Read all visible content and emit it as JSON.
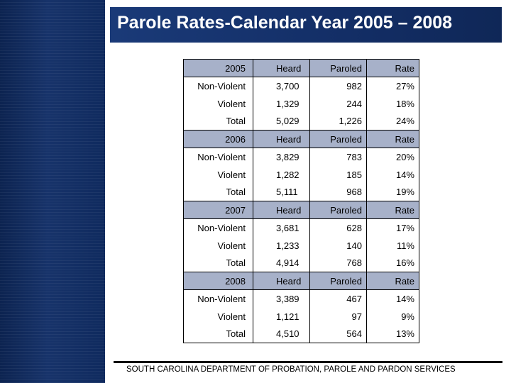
{
  "title": "Parole Rates-Calendar Year 2005 – 2008",
  "footer": "SOUTH CAROLINA DEPARTMENT OF PROBATION, PAROLE AND PARDON SERVICES",
  "colors": {
    "panel": "#17336a",
    "title_bar": "#1a3a78",
    "header_row": "#a7b1c9"
  },
  "table": {
    "sections": [
      {
        "year": "2005",
        "heard": "Heard",
        "paroled": "Paroled",
        "rate": "Rate",
        "rows": [
          {
            "label": "Non-Violent",
            "heard": "3,700",
            "paroled": "982",
            "rate": "27%"
          },
          {
            "label": "Violent",
            "heard": "1,329",
            "paroled": "244",
            "rate": "18%"
          },
          {
            "label": "Total",
            "heard": "5,029",
            "paroled": "1,226",
            "rate": "24%"
          }
        ]
      },
      {
        "year": "2006",
        "heard": "Heard",
        "paroled": "Paroled",
        "rate": "Rate",
        "rows": [
          {
            "label": "Non-Violent",
            "heard": "3,829",
            "paroled": "783",
            "rate": "20%"
          },
          {
            "label": "Violent",
            "heard": "1,282",
            "paroled": "185",
            "rate": "14%"
          },
          {
            "label": "Total",
            "heard": "5,111",
            "paroled": "968",
            "rate": "19%"
          }
        ]
      },
      {
        "year": "2007",
        "heard": "Heard",
        "paroled": "Paroled",
        "rate": "Rate",
        "rows": [
          {
            "label": "Non-Violent",
            "heard": "3,681",
            "paroled": "628",
            "rate": "17%"
          },
          {
            "label": "Violent",
            "heard": "1,233",
            "paroled": "140",
            "rate": "11%"
          },
          {
            "label": "Total",
            "heard": "4,914",
            "paroled": "768",
            "rate": "16%"
          }
        ]
      },
      {
        "year": "2008",
        "heard": "Heard",
        "paroled": "Paroled",
        "rate": "Rate",
        "rows": [
          {
            "label": "Non-Violent",
            "heard": "3,389",
            "paroled": "467",
            "rate": "14%"
          },
          {
            "label": "Violent",
            "heard": "1,121",
            "paroled": "97",
            "rate": "9%"
          },
          {
            "label": "Total",
            "heard": "4,510",
            "paroled": "564",
            "rate": "13%"
          }
        ]
      }
    ]
  }
}
